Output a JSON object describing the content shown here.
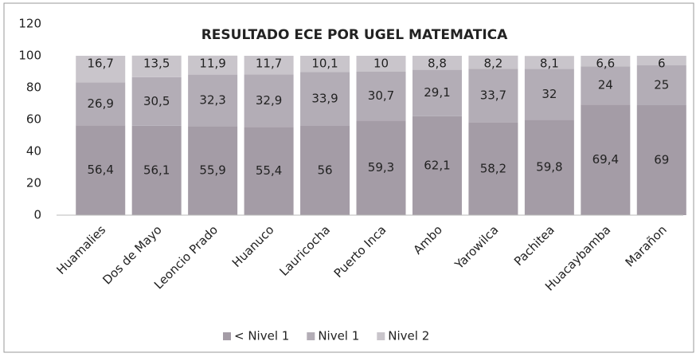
{
  "chart_data": {
    "type": "stacked_bar",
    "title": "RESULTADO ECE POR UGEL MATEMATICA",
    "categories": [
      "Huamalies",
      "Dos de Mayo",
      "Leoncio Prado",
      "Huanuco",
      "Lauricocha",
      "Puerto Inca",
      "Ambo",
      "Yarowilca",
      "Pachitea",
      "Huacaybamba",
      "Marañon"
    ],
    "series": [
      {
        "name": "< Nivel 1",
        "color": "#a49ca6",
        "values": [
          56.4,
          56.1,
          55.9,
          55.4,
          56,
          59.3,
          62.1,
          58.2,
          59.8,
          69.4,
          69
        ],
        "value_labels": [
          "56,4",
          "56,1",
          "55,9",
          "55,4",
          "56",
          "59,3",
          "62,1",
          "58,2",
          "59,8",
          "69,4",
          "69"
        ]
      },
      {
        "name": "Nivel 1",
        "color": "#b3adb6",
        "values": [
          26.9,
          30.5,
          32.3,
          32.9,
          33.9,
          30.7,
          29.1,
          33.7,
          32,
          24,
          25
        ],
        "value_labels": [
          "26,9",
          "30,5",
          "32,3",
          "32,9",
          "33,9",
          "30,7",
          "29,1",
          "33,7",
          "32",
          "24",
          "25"
        ]
      },
      {
        "name": "Nivel 2",
        "color": "#c9c5cb",
        "values": [
          16.7,
          13.5,
          11.9,
          11.7,
          10.1,
          10,
          8.8,
          8.2,
          8.1,
          6.6,
          6
        ],
        "value_labels": [
          "16,7",
          "13,5",
          "11,9",
          "11,7",
          "10,1",
          "10",
          "8,8",
          "8,2",
          "8,1",
          "6,6",
          "6"
        ]
      }
    ],
    "ylim": [
      0,
      120
    ],
    "yticks": [
      0,
      20,
      40,
      60,
      80,
      100,
      120
    ],
    "grid": false,
    "legend": "bottom"
  }
}
